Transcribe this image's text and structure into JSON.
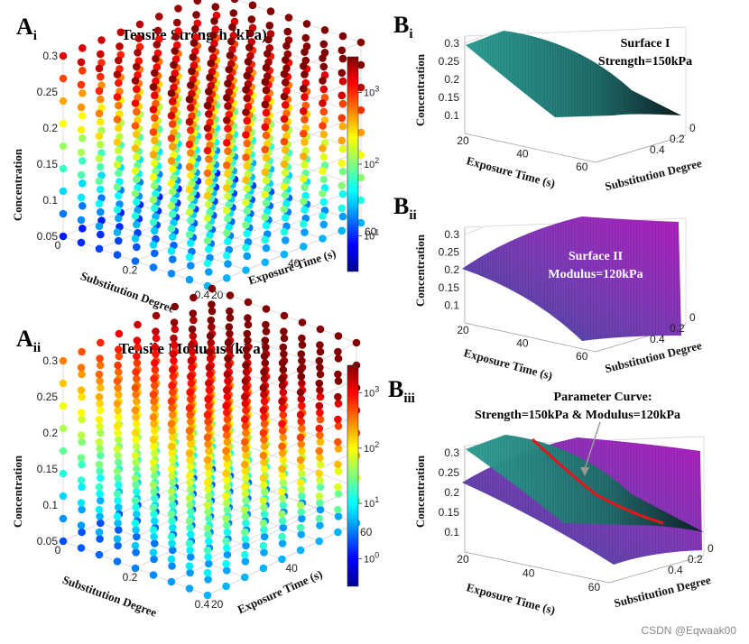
{
  "chart_data": [
    {
      "panel": "Ai",
      "type": "scatter3d",
      "title": "Tensile Strength (kPa)",
      "xlabel": "Substitution Degree",
      "ylabel": "Exposure Time (s)",
      "zlabel": "Concentration",
      "xticks": [
        "0",
        "0.2",
        "0.4"
      ],
      "yticks": [
        "20",
        "40",
        "60"
      ],
      "zticks": [
        "0.05",
        "0.1",
        "0.15",
        "0.2",
        "0.25",
        "0.3"
      ],
      "colorbar": {
        "scale": "log",
        "ticks": [
          "10^1",
          "10^2",
          "10^3"
        ],
        "range": [
          3,
          2000
        ]
      }
    },
    {
      "panel": "Aii",
      "type": "scatter3d",
      "title": "Tensile Modulus (kPa)",
      "xlabel": "Substitution Degree",
      "ylabel": "Exposure Time (s)",
      "zlabel": "Concentration",
      "xticks": [
        "0",
        "0.2",
        "0.4"
      ],
      "yticks": [
        "20",
        "40",
        "60"
      ],
      "zticks": [
        "0.05",
        "0.1",
        "0.15",
        "0.2",
        "0.25",
        "0.3"
      ],
      "colorbar": {
        "scale": "log",
        "ticks": [
          "10^0",
          "10^1",
          "10^2",
          "10^3"
        ],
        "range": [
          0.5,
          1500
        ]
      }
    },
    {
      "panel": "Bi",
      "type": "surface3d",
      "annotation": [
        "Surface I",
        "Strength=150kPa"
      ],
      "xlabel": "Exposure Time (s)",
      "ylabel": "Substitution Degree",
      "zlabel": "Concentration",
      "xticks": [
        "20",
        "40",
        "60"
      ],
      "yticks": [
        "0",
        "0.2",
        "0.4"
      ],
      "zticks": [
        "0.1",
        "0.15",
        "0.2",
        "0.25",
        "0.3"
      ]
    },
    {
      "panel": "Bii",
      "type": "surface3d",
      "annotation": [
        "Surface II",
        "Modulus=120kPa"
      ],
      "xlabel": "Exposure Time (s)",
      "ylabel": "Substitution Degree",
      "zlabel": "Concentration",
      "xticks": [
        "20",
        "40",
        "60"
      ],
      "yticks": [
        "0",
        "0.2",
        "0.4"
      ],
      "zticks": [
        "0.1",
        "0.15",
        "0.2",
        "0.25",
        "0.3"
      ]
    },
    {
      "panel": "Biii",
      "type": "surface3d",
      "annotation": [
        "Parameter Curve:",
        "Strength=150kPa & Modulus=120kPa"
      ],
      "xlabel": "Exposure Time (s)",
      "ylabel": "Substitution Degree",
      "zlabel": "Concentration",
      "xticks": [
        "20",
        "40",
        "60"
      ],
      "yticks": [
        "0",
        "0.2",
        "0.4"
      ],
      "zticks": [
        "0.1",
        "0.15",
        "0.2",
        "0.25",
        "0.3"
      ]
    }
  ],
  "labels": {
    "ai": {
      "main": "A",
      "sub": "i"
    },
    "aii": {
      "main": "A",
      "sub": "ii"
    },
    "bi": {
      "main": "B",
      "sub": "i"
    },
    "bii": {
      "main": "B",
      "sub": "ii"
    },
    "biii": {
      "main": "B",
      "sub": "iii"
    }
  },
  "watermark": "CSDN @Eqwaak00",
  "colors": {
    "teal": "#2a9d8f",
    "purple": "#9b2fae",
    "curve": "#e0161b"
  }
}
